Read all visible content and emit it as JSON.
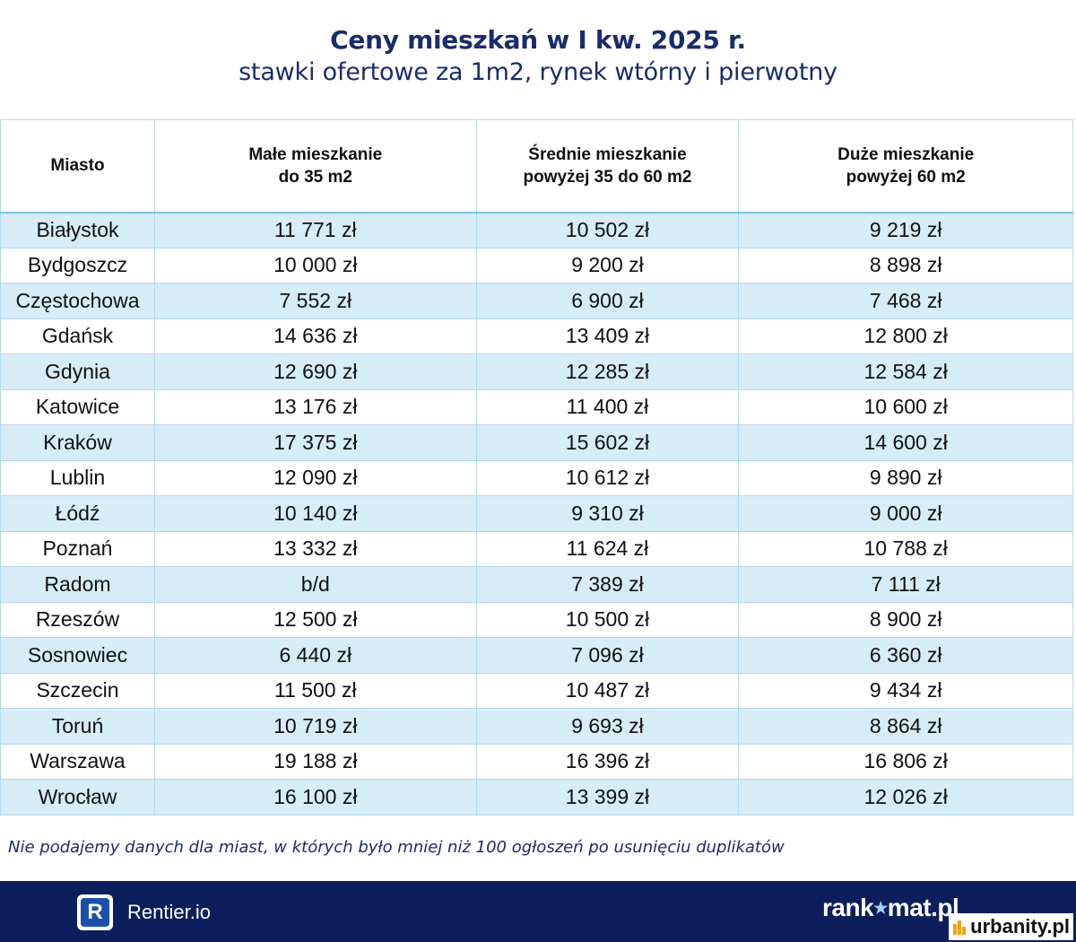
{
  "header": {
    "title": "Ceny mieszkań w I kw. 2025 r.",
    "subtitle": "stawki ofertowe za 1m2, rynek wtórny i pierwotny"
  },
  "table": {
    "columns": [
      "Miasto",
      "Małe mieszkanie\ndo 35 m2",
      "Średnie mieszkanie\npowyżej 35 do 60 m2",
      "Duże mieszkanie\npowyżej 60 m2"
    ],
    "rows": [
      [
        "Białystok",
        "11 771 zł",
        "10 502 zł",
        "9 219 zł"
      ],
      [
        "Bydgoszcz",
        "10 000 zł",
        "9 200 zł",
        "8 898 zł"
      ],
      [
        "Częstochowa",
        "7 552 zł",
        "6 900 zł",
        "7 468 zł"
      ],
      [
        "Gdańsk",
        "14 636 zł",
        "13 409 zł",
        "12 800 zł"
      ],
      [
        "Gdynia",
        "12 690 zł",
        "12 285 zł",
        "12 584 zł"
      ],
      [
        "Katowice",
        "13 176 zł",
        "11 400 zł",
        "10 600 zł"
      ],
      [
        "Kraków",
        "17 375 zł",
        "15 602 zł",
        "14 600 zł"
      ],
      [
        "Lublin",
        "12 090 zł",
        "10 612 zł",
        "9 890 zł"
      ],
      [
        "Łódź",
        "10 140 zł",
        "9 310 zł",
        "9 000 zł"
      ],
      [
        "Poznań",
        "13 332 zł",
        "11 624 zł",
        "10 788 zł"
      ],
      [
        "Radom",
        "b/d",
        "7 389 zł",
        "7 111 zł"
      ],
      [
        "Rzeszów",
        "12 500 zł",
        "10 500 zł",
        "8 900 zł"
      ],
      [
        "Sosnowiec",
        "6 440 zł",
        "7 096 zł",
        "6 360 zł"
      ],
      [
        "Szczecin",
        "11 500 zł",
        "10 487 zł",
        "9 434 zł"
      ],
      [
        "Toruń",
        "10 719 zł",
        "9 693 zł",
        "8 864 zł"
      ],
      [
        "Warszawa",
        "19 188 zł",
        "16 396 zł",
        "16 806 zł"
      ],
      [
        "Wrocław",
        "16 100 zł",
        "13 399 zł",
        "12 026 zł"
      ]
    ]
  },
  "footnote": "Nie podajemy danych dla miast, w których było mniej niż 100 ogłoszeń po usunięciu duplikatów",
  "footer": {
    "rentier_badge": "R",
    "rentier_label": "Rentier.io",
    "rankomat_part1": "rank",
    "rankomat_part2": "mat.pl",
    "urbanity_label": "urbanity.pl",
    "icon_rankomat": "star-icon",
    "icon_urbanity": "building-icon"
  },
  "colors": {
    "title": "#1a2c6b",
    "row_stripe": "#d6ecf7",
    "footer_bg": "#0c1f5c",
    "rentier_badge": "#1b4fa8"
  }
}
